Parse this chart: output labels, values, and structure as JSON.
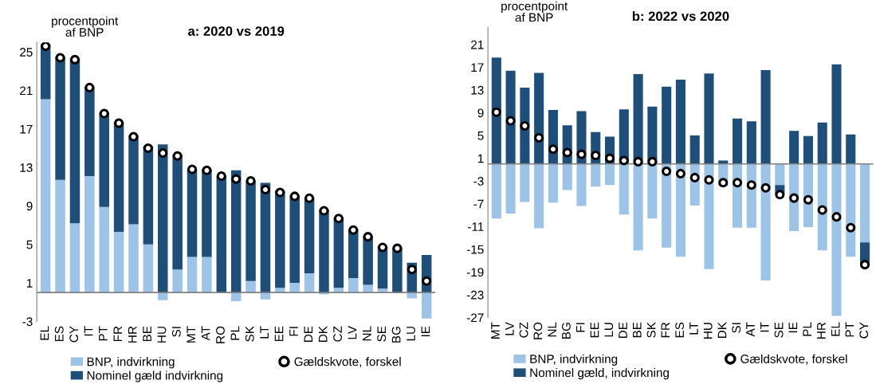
{
  "chart_data": [
    {
      "type": "bar",
      "stacked": true,
      "title": "a: 2020 vs 2019",
      "annotations": [
        "procentpoint\naf BNP"
      ],
      "categories": [
        "EL",
        "ES",
        "CY",
        "IT",
        "PT",
        "FR",
        "HR",
        "BE",
        "HU",
        "SI",
        "MT",
        "AT",
        "RO",
        "PL",
        "SK",
        "LT",
        "EE",
        "FI",
        "DE",
        "DK",
        "CZ",
        "LV",
        "NL",
        "SE",
        "BG",
        "LU",
        "IE"
      ],
      "ylim": [
        -3,
        26
      ],
      "yticks": [
        -3,
        1,
        5,
        9,
        13,
        17,
        21,
        25
      ],
      "grid": false,
      "legend": "bottom",
      "series": [
        {
          "name": "BNP, indvirkning",
          "color": "#9dc3e6",
          "values": [
            20.1,
            11.7,
            7.2,
            12.1,
            8.9,
            6.3,
            7.1,
            5.0,
            -0.8,
            2.4,
            3.7,
            3.7,
            0,
            -0.9,
            1.2,
            -0.7,
            0.5,
            1.0,
            2.0,
            -0.2,
            0.5,
            1.5,
            0.8,
            0.4,
            0,
            -0.6,
            -2.7
          ]
        },
        {
          "name": "Nominel gæld indvirkning",
          "color": "#1f4e79",
          "values": [
            5.7,
            12.8,
            17.1,
            9.3,
            9.8,
            11.4,
            9.2,
            10.2,
            15.4,
            11.9,
            9.1,
            9.1,
            12.1,
            12.7,
            10.4,
            11.4,
            10.1,
            9.1,
            7.9,
            8.6,
            7.3,
            5.1,
            5.1,
            4.4,
            4.7,
            3.1,
            3.9
          ]
        },
        {
          "name": "Gældskvote, forskel",
          "type": "scatter",
          "marker": "circle",
          "color": "#000000",
          "values": [
            25.6,
            24.4,
            24.2,
            21.3,
            18.6,
            17.6,
            16.2,
            15.0,
            14.5,
            14.2,
            12.8,
            12.7,
            12.1,
            11.8,
            11.6,
            10.7,
            10.4,
            10.0,
            9.8,
            8.5,
            7.7,
            6.5,
            5.8,
            4.7,
            4.6,
            2.4,
            1.2
          ]
        }
      ]
    },
    {
      "type": "bar",
      "stacked": true,
      "title": "b: 2022 vs 2020",
      "annotations": [
        "procentpoint\naf BNP"
      ],
      "categories": [
        "MT",
        "LV",
        "CZ",
        "RO",
        "NL",
        "BG",
        "FI",
        "EE",
        "LU",
        "DE",
        "BE",
        "SK",
        "FR",
        "ES",
        "LT",
        "HU",
        "DK",
        "SI",
        "AT",
        "IT",
        "SE",
        "IE",
        "PL",
        "HR",
        "EL",
        "PT",
        "CY"
      ],
      "ylim": [
        -27,
        24
      ],
      "yticks": [
        -27,
        -23,
        -19,
        -15,
        -11,
        -7,
        -3,
        1,
        5,
        9,
        13,
        17,
        21
      ],
      "grid": false,
      "legend": "bottom",
      "series": [
        {
          "name": "BNP, indvirkning",
          "color": "#9dc3e6",
          "values": [
            -9.6,
            -8.7,
            -6.7,
            -11.3,
            -6.8,
            -4.6,
            -7.4,
            -4.0,
            -3.7,
            -8.9,
            -15.2,
            -9.6,
            -14.7,
            -16.3,
            -7.3,
            -18.5,
            -3.9,
            -11.2,
            -11.2,
            -20.5,
            -3.7,
            -11.8,
            -11.1,
            -15.2,
            -26.7,
            -16.3,
            -13.8
          ]
        },
        {
          "name": "Nominel gæld, indvirkning",
          "color": "#1f4e79",
          "values": [
            18.7,
            16.4,
            13.4,
            16.0,
            9.5,
            6.8,
            9.3,
            5.6,
            4.8,
            9.6,
            15.8,
            10.1,
            13.6,
            14.8,
            5.0,
            15.9,
            0.6,
            8.0,
            7.5,
            16.5,
            -1.6,
            5.8,
            4.9,
            7.3,
            17.5,
            5.2,
            -3.9
          ]
        },
        {
          "name": "Gældskvote, forskel",
          "type": "scatter",
          "marker": "circle",
          "color": "#000000",
          "values": [
            9.1,
            7.6,
            6.7,
            4.6,
            2.6,
            2.0,
            1.7,
            1.5,
            1.0,
            0.6,
            0.4,
            0.4,
            -1.3,
            -1.7,
            -2.4,
            -2.8,
            -3.3,
            -3.3,
            -3.7,
            -4.2,
            -5.4,
            -6.0,
            -6.3,
            -8.1,
            -9.3,
            -11.2,
            -17.7
          ]
        }
      ]
    }
  ]
}
